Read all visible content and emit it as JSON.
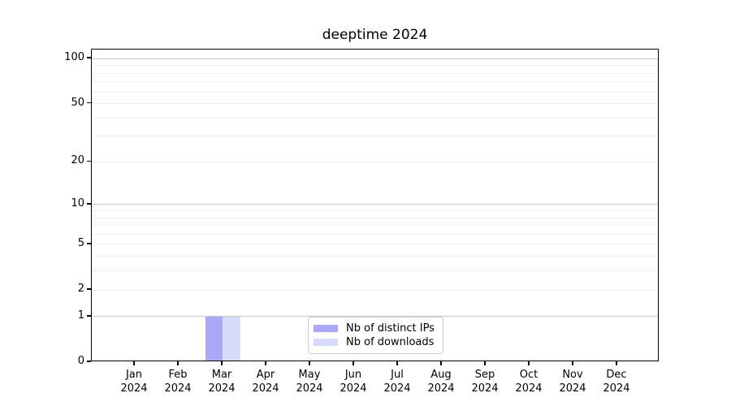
{
  "chart_data": {
    "type": "bar",
    "title": "deeptime 2024",
    "categories": [
      "Jan 2024",
      "Feb 2024",
      "Mar 2024",
      "Apr 2024",
      "May 2024",
      "Jun 2024",
      "Jul 2024",
      "Aug 2024",
      "Sep 2024",
      "Oct 2024",
      "Nov 2024",
      "Dec 2024"
    ],
    "series": [
      {
        "name": "Nb of distinct IPs",
        "color": "#a8aaf8",
        "values": [
          0,
          0,
          1,
          0,
          0,
          0,
          0,
          0,
          0,
          0,
          0,
          0
        ]
      },
      {
        "name": "Nb of downloads",
        "color": "#d8dafa",
        "values": [
          0,
          0,
          1,
          0,
          0,
          0,
          0,
          0,
          0,
          0,
          0,
          0
        ]
      }
    ],
    "y_axis": {
      "scale": "log1p",
      "ticks": [
        0,
        1,
        2,
        5,
        10,
        20,
        50,
        100
      ],
      "major_gridlines": [
        1,
        10,
        100
      ],
      "minor_gridlines": [
        2,
        3,
        4,
        5,
        6,
        7,
        8,
        9,
        20,
        30,
        40,
        50,
        60,
        70,
        80,
        90
      ],
      "ylim": [
        0,
        115
      ]
    },
    "grid": "horizontal",
    "legend_position": "lower center inside plot",
    "colors": {
      "grid_major": "#c8c8c8",
      "grid_minor": "#ececec",
      "spine": "#000000"
    }
  }
}
